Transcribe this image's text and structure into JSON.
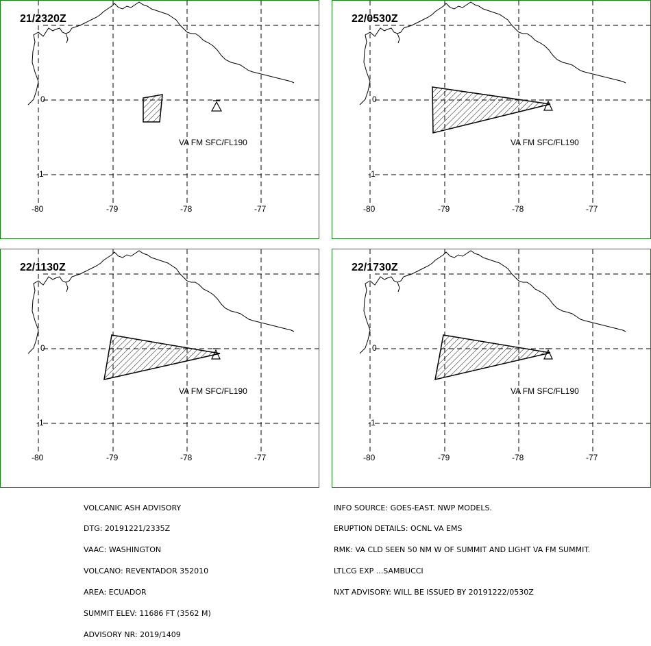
{
  "panels": [
    {
      "time": "21/2320Z",
      "va_text": "VA FM SFC/FL190"
    },
    {
      "time": "22/0530Z",
      "va_text": "VA FM SFC/FL190"
    },
    {
      "time": "22/1130Z",
      "va_text": "VA FM SFC/FL190"
    },
    {
      "time": "22/1730Z",
      "va_text": "VA FM SFC/FL190"
    }
  ],
  "axes": {
    "lon_labels": [
      "-80",
      "-79",
      "-78",
      "-77"
    ],
    "lat_labels": [
      "0",
      "-1"
    ]
  },
  "advisory_left": [
    "VOLCANIC ASH ADVISORY",
    "DTG: 20191221/2335Z",
    "VAAC: WASHINGTON",
    "VOLCANO: REVENTADOR 352010",
    "AREA: ECUADOR",
    "SUMMIT ELEV: 11686 FT (3562 M)",
    "ADVISORY NR: 2019/1409"
  ],
  "advisory_right": [
    "INFO SOURCE: GOES-EAST. NWP MODELS.",
    "ERUPTION DETAILS: OCNL VA EMS",
    "RMK: VA CLD SEEN 50 NM W OF SUMMIT AND LIGHT VA FM SUMMIT.",
    "LTLCG EXP ...SAMBUCCI",
    "NXT ADVISORY: WILL BE ISSUED BY 20191222/0530Z"
  ]
}
